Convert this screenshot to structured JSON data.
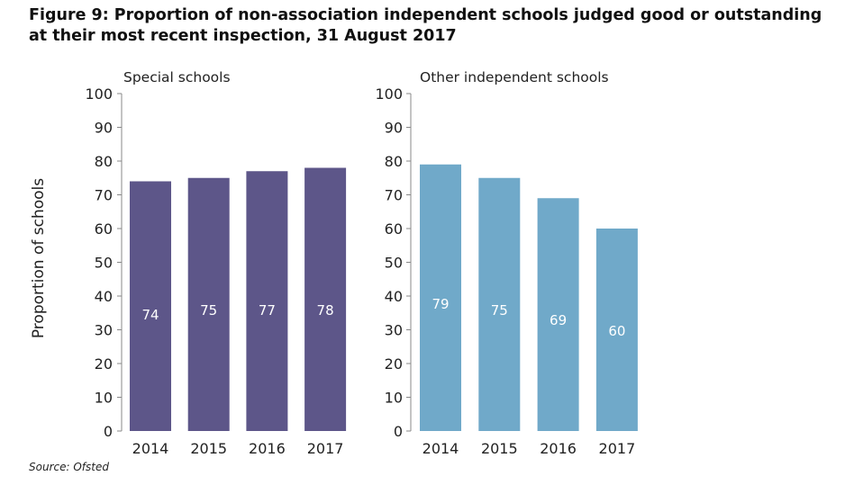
{
  "title": "Figure 9:  Proportion of non-association independent schools judged good or outstanding at their most recent inspection, 31 August 2017",
  "source": "Source: Ofsted",
  "ylabel": "Proportion of schools",
  "colors": {
    "special": "#5d5689",
    "other": "#70a9c9",
    "axis": "#888888",
    "label": "#ffffff"
  },
  "chart_data": [
    {
      "type": "bar",
      "title": "Special schools",
      "categories": [
        "2014",
        "2015",
        "2016",
        "2017"
      ],
      "values": [
        74,
        75,
        77,
        78
      ],
      "ylim": [
        0,
        100
      ],
      "yticks": [
        0,
        10,
        20,
        30,
        40,
        50,
        60,
        70,
        80,
        90,
        100
      ],
      "ylabel": "Proportion of schools",
      "color": "#5d5689"
    },
    {
      "type": "bar",
      "title": "Other independent schools",
      "categories": [
        "2014",
        "2015",
        "2016",
        "2017"
      ],
      "values": [
        79,
        75,
        69,
        60
      ],
      "ylim": [
        0,
        100
      ],
      "yticks": [
        0,
        10,
        20,
        30,
        40,
        50,
        60,
        70,
        80,
        90,
        100
      ],
      "ylabel": "",
      "color": "#70a9c9"
    }
  ]
}
